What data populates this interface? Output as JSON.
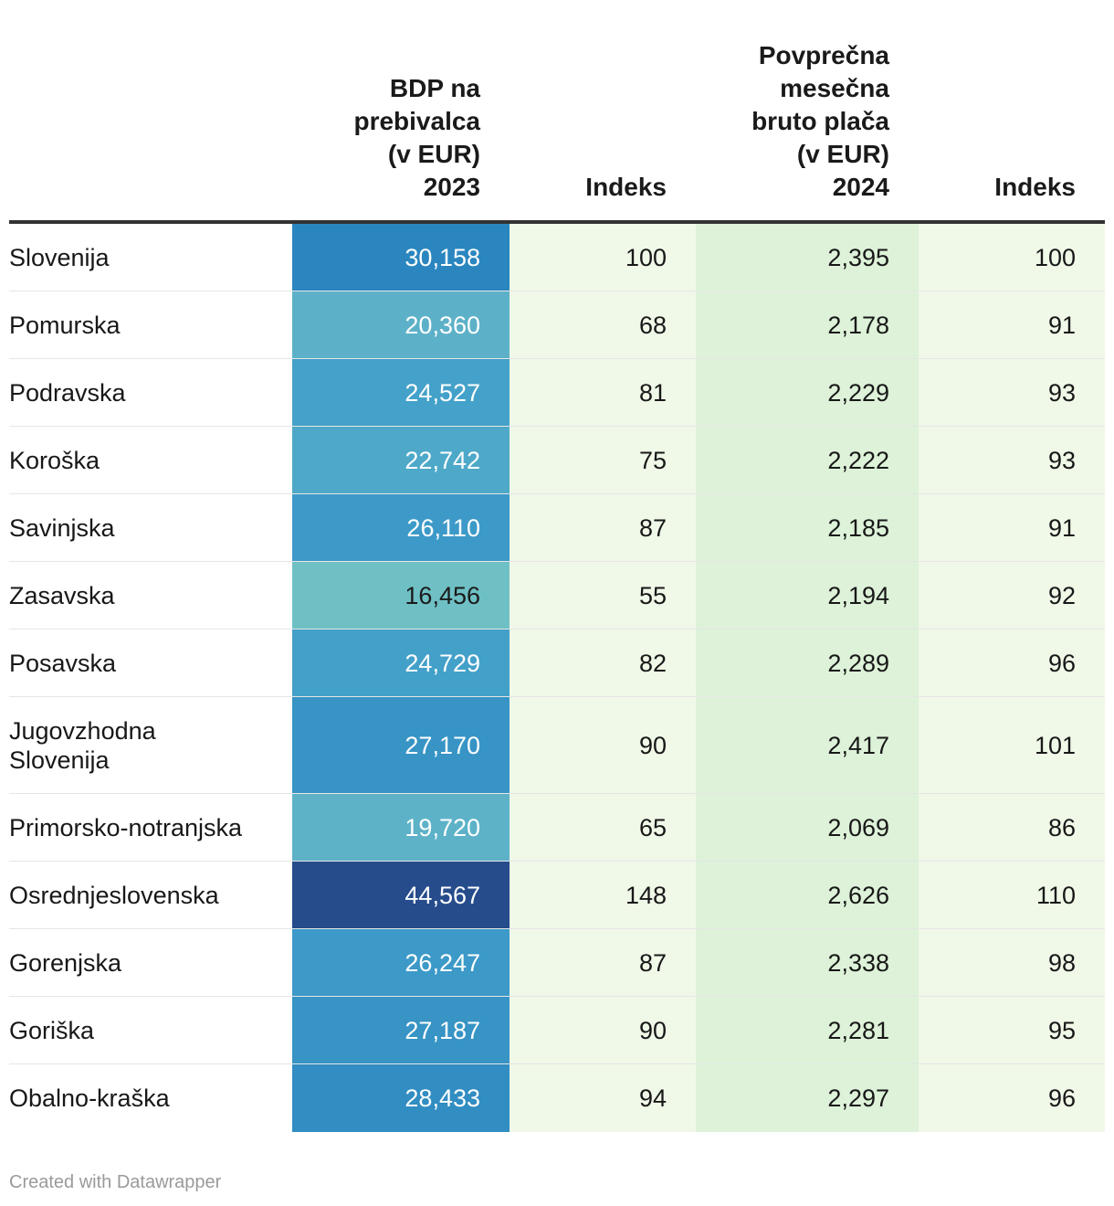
{
  "chart_data": {
    "type": "table",
    "columns": [
      {
        "key": "region",
        "label": ""
      },
      {
        "key": "gdp",
        "label_lines": [
          "BDP na",
          "prebivalca",
          "(v EUR)",
          "2023"
        ]
      },
      {
        "key": "gdp_index",
        "label_lines": [
          "Indeks"
        ]
      },
      {
        "key": "wage",
        "label_lines": [
          "Povprečna",
          "mesečna",
          "bruto plača",
          "(v EUR)",
          "2024"
        ]
      },
      {
        "key": "wage_index",
        "label_lines": [
          "Indeks"
        ]
      }
    ],
    "rows": [
      {
        "region": "Slovenija",
        "gdp": "30,158",
        "gdp_value": 30158,
        "gdp_color": "#2b86bf",
        "gdp_text_color": "#ffffff",
        "gdp_index": "100",
        "wage": "2,395",
        "wage_index": "100"
      },
      {
        "region": "Pomurska",
        "gdp": "20,360",
        "gdp_value": 20360,
        "gdp_color": "#5cb1c8",
        "gdp_text_color": "#ffffff",
        "gdp_index": "68",
        "wage": "2,178",
        "wage_index": "91"
      },
      {
        "region": "Podravska",
        "gdp": "24,527",
        "gdp_value": 24527,
        "gdp_color": "#44a1c9",
        "gdp_text_color": "#ffffff",
        "gdp_index": "81",
        "wage": "2,229",
        "wage_index": "93"
      },
      {
        "region": "Koroška",
        "gdp": "22,742",
        "gdp_value": 22742,
        "gdp_color": "#4ea9c9",
        "gdp_text_color": "#ffffff",
        "gdp_index": "75",
        "wage": "2,222",
        "wage_index": "93"
      },
      {
        "region": "Savinjska",
        "gdp": "26,110",
        "gdp_value": 26110,
        "gdp_color": "#3d9ac8",
        "gdp_text_color": "#ffffff",
        "gdp_index": "87",
        "wage": "2,185",
        "wage_index": "91"
      },
      {
        "region": "Zasavska",
        "gdp": "16,456",
        "gdp_value": 16456,
        "gdp_color": "#6fc0c4",
        "gdp_text_color": "#1a1a1a",
        "gdp_index": "55",
        "wage": "2,194",
        "wage_index": "92"
      },
      {
        "region": "Posavska",
        "gdp": "24,729",
        "gdp_value": 24729,
        "gdp_color": "#43a0c9",
        "gdp_text_color": "#ffffff",
        "gdp_index": "82",
        "wage": "2,289",
        "wage_index": "96"
      },
      {
        "region": "Jugovzhodna Slovenija",
        "gdp": "27,170",
        "gdp_value": 27170,
        "gdp_color": "#3794c5",
        "gdp_text_color": "#ffffff",
        "gdp_index": "90",
        "wage": "2,417",
        "wage_index": "101"
      },
      {
        "region": "Primorsko-notranjska",
        "gdp": "19,720",
        "gdp_value": 19720,
        "gdp_color": "#5db2c8",
        "gdp_text_color": "#ffffff",
        "gdp_index": "65",
        "wage": "2,069",
        "wage_index": "86"
      },
      {
        "region": "Osrednjeslovenska",
        "gdp": "44,567",
        "gdp_value": 44567,
        "gdp_color": "#264c8c",
        "gdp_text_color": "#ffffff",
        "gdp_index": "148",
        "wage": "2,626",
        "wage_index": "110"
      },
      {
        "region": "Gorenjska",
        "gdp": "26,247",
        "gdp_value": 26247,
        "gdp_color": "#3c99c8",
        "gdp_text_color": "#ffffff",
        "gdp_index": "87",
        "wage": "2,338",
        "wage_index": "98"
      },
      {
        "region": "Goriška",
        "gdp": "27,187",
        "gdp_value": 27187,
        "gdp_color": "#3794c5",
        "gdp_text_color": "#ffffff",
        "gdp_index": "90",
        "wage": "2,281",
        "wage_index": "95"
      },
      {
        "region": "Obalno-kraška",
        "gdp": "28,433",
        "gdp_value": 28433,
        "gdp_color": "#318dc2",
        "gdp_text_color": "#ffffff",
        "gdp_index": "94",
        "wage": "2,297",
        "wage_index": "96"
      }
    ]
  },
  "footer": {
    "credit": "Created with Datawrapper"
  }
}
